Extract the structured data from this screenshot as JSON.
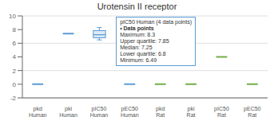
{
  "chart_data": {
    "type": "box",
    "title": "Urotensin II receptor",
    "categories": [
      "pkd Human",
      "pki Human",
      "pIC50 Human",
      "pEC50 Human",
      "pkd Rat",
      "pki Rat",
      "pIC50 Rat",
      "pEC50 Rat"
    ],
    "ylim": [
      -2,
      10
    ],
    "yticks": [
      -2,
      0,
      2,
      4,
      6,
      8,
      10
    ],
    "grid": true,
    "series": [
      {
        "type": "hline",
        "color": "#5b9bd5",
        "values": [
          0.0,
          7.4,
          null,
          0.0,
          null,
          null,
          null,
          null
        ]
      },
      {
        "type": "hline",
        "color": "#70ad47",
        "values": [
          null,
          null,
          null,
          null,
          0.0,
          0.0,
          4.0,
          0.0
        ]
      },
      {
        "type": "box",
        "color": "#5b9bd5",
        "minimum": [
          null,
          null,
          6.49,
          null,
          null,
          null,
          null,
          null
        ],
        "lower_quartile": [
          null,
          null,
          6.8,
          null,
          null,
          null,
          null,
          null
        ],
        "median": [
          null,
          null,
          7.25,
          null,
          null,
          null,
          null,
          null
        ],
        "upper_quartile": [
          null,
          null,
          7.85,
          null,
          null,
          null,
          null,
          null
        ],
        "maximum": [
          null,
          null,
          8.3,
          null,
          null,
          null,
          null,
          null
        ]
      }
    ],
    "annotations": [
      "pIC50 Human (4 data points)",
      "• Data points",
      "Maximum: 8.3",
      "Upper quartile: 7.85",
      "Median: 7.25",
      "Lower quartile: 6.8",
      "Minimum: 6.49"
    ]
  }
}
